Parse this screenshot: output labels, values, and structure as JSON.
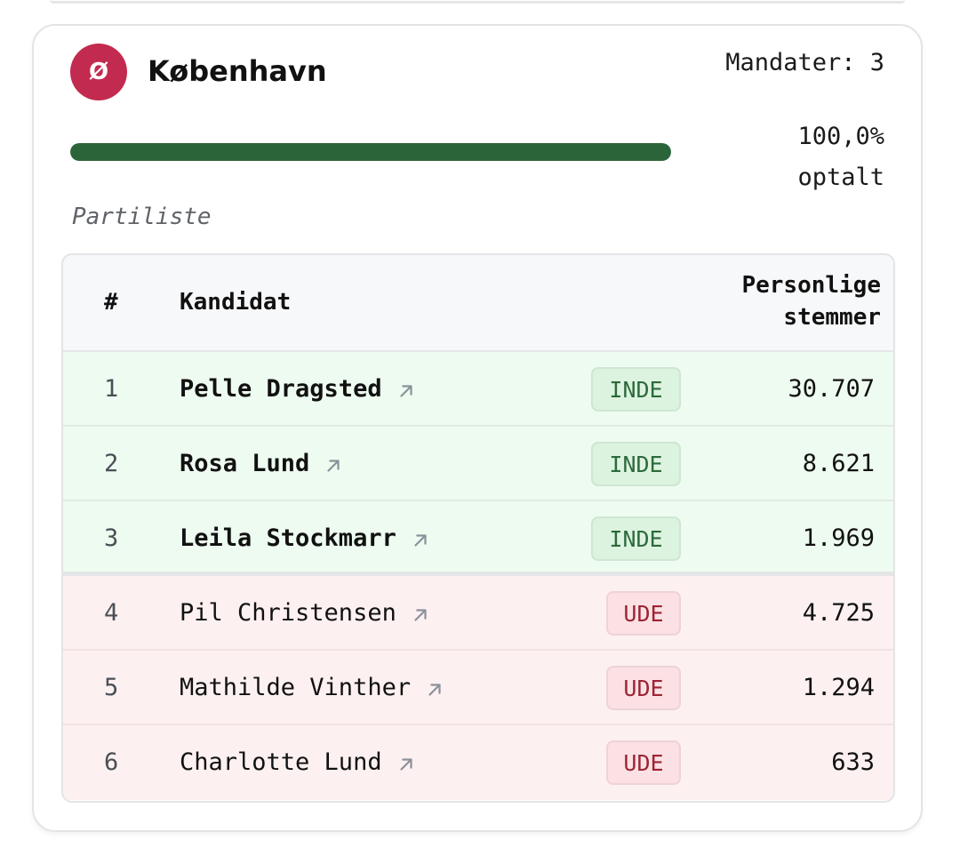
{
  "party": {
    "logo_letter": "Ø",
    "logo_color": "#c32a4f",
    "city": "København"
  },
  "mandates_label": "Mandater: 3",
  "progress": {
    "fraction": 1.0,
    "label_line1": "100,0%",
    "label_line2": "optalt",
    "fill_color": "#2b6439"
  },
  "section_label": "Partiliste",
  "table": {
    "headers": {
      "number": "#",
      "candidate": "Kandidat",
      "votes_line1": "Personlige",
      "votes_line2": "stemmer"
    },
    "rows": [
      {
        "number": "1",
        "name": "Pelle Dragsted",
        "status": "INDE",
        "votes": "30.707"
      },
      {
        "number": "2",
        "name": "Rosa Lund",
        "status": "INDE",
        "votes": "8.621"
      },
      {
        "number": "3",
        "name": "Leila Stockmarr",
        "status": "INDE",
        "votes": "1.969"
      },
      {
        "number": "4",
        "name": "Pil Christensen",
        "status": "UDE",
        "votes": "4.725"
      },
      {
        "number": "5",
        "name": "Mathilde Vinther",
        "status": "UDE",
        "votes": "1.294"
      },
      {
        "number": "6",
        "name": "Charlotte Lund",
        "status": "UDE",
        "votes": "633"
      }
    ],
    "link_icon": "external-arrow-icon",
    "colors": {
      "in_bg": "#eefbf0",
      "out_bg": "#fdf0f1",
      "in_badge_text": "#2d6a3c",
      "out_badge_text": "#9c2435"
    }
  }
}
